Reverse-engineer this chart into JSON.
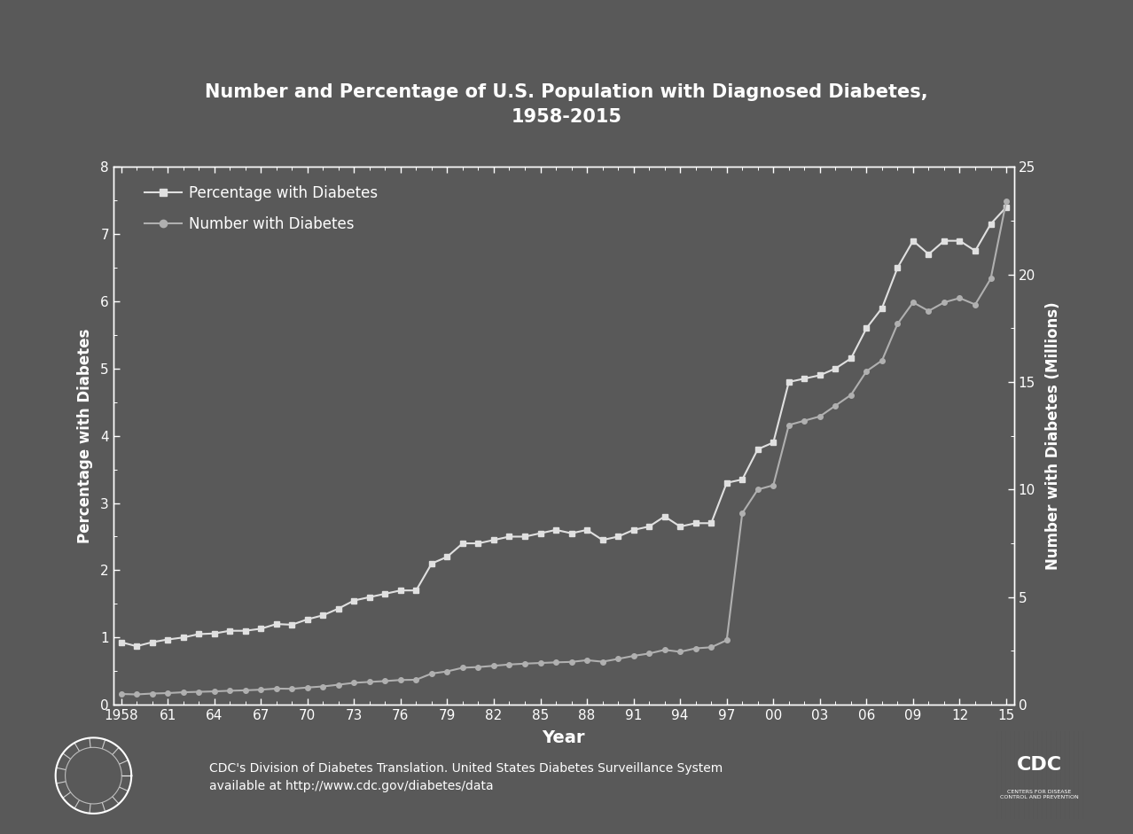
{
  "title": "Number and Percentage of U.S. Population with Diagnosed Diabetes,\n1958-2015",
  "xlabel": "Year",
  "ylabel_left": "Percentage with Diabetes",
  "ylabel_right": "Number with Diabetes (Millions)",
  "bg_color": "#595959",
  "plot_bg_color": "#595959",
  "text_color": "#ffffff",
  "line_color_pct": "#e0e0e0",
  "line_color_num": "#b0b0b0",
  "marker_pct": "s",
  "marker_num": "o",
  "ylim_left": [
    0,
    8
  ],
  "ylim_right": [
    0,
    25
  ],
  "yticks_left": [
    0,
    1,
    2,
    3,
    4,
    5,
    6,
    7,
    8
  ],
  "yticks_right": [
    0,
    5,
    10,
    15,
    20,
    25
  ],
  "footer_text": "CDC's Division of Diabetes Translation. United States Diabetes Surveillance System\navailable at http://www.cdc.gov/diabetes/data",
  "years": [
    1958,
    1959,
    1960,
    1961,
    1962,
    1963,
    1964,
    1965,
    1966,
    1967,
    1968,
    1969,
    1970,
    1971,
    1972,
    1973,
    1974,
    1975,
    1976,
    1977,
    1978,
    1979,
    1980,
    1981,
    1982,
    1983,
    1984,
    1985,
    1986,
    1987,
    1988,
    1989,
    1990,
    1991,
    1992,
    1993,
    1994,
    1995,
    1996,
    1997,
    1998,
    1999,
    2000,
    2001,
    2002,
    2003,
    2004,
    2005,
    2006,
    2007,
    2008,
    2009,
    2010,
    2011,
    2012,
    2013,
    2014,
    2015
  ],
  "pct": [
    0.93,
    0.87,
    0.93,
    0.97,
    1.0,
    1.05,
    1.06,
    1.1,
    1.1,
    1.13,
    1.2,
    1.19,
    1.27,
    1.33,
    1.43,
    1.55,
    1.6,
    1.65,
    1.7,
    1.7,
    2.1,
    2.2,
    2.4,
    2.4,
    2.45,
    2.5,
    2.5,
    2.55,
    2.6,
    2.55,
    2.6,
    2.45,
    2.5,
    2.6,
    2.65,
    2.8,
    2.65,
    2.7,
    2.7,
    3.3,
    3.35,
    3.8,
    3.9,
    4.8,
    4.85,
    4.9,
    5.0,
    5.15,
    5.6,
    5.9,
    6.5,
    6.9,
    6.7,
    6.9,
    6.9,
    6.75,
    7.15,
    7.4
  ],
  "num": [
    0.5,
    0.48,
    0.52,
    0.54,
    0.58,
    0.6,
    0.62,
    0.65,
    0.67,
    0.7,
    0.75,
    0.74,
    0.8,
    0.85,
    0.93,
    1.02,
    1.06,
    1.1,
    1.15,
    1.16,
    1.45,
    1.55,
    1.72,
    1.75,
    1.81,
    1.87,
    1.91,
    1.94,
    1.97,
    1.99,
    2.07,
    2.0,
    2.13,
    2.27,
    2.38,
    2.55,
    2.46,
    2.62,
    2.67,
    3.0,
    8.9,
    10.0,
    10.2,
    13.0,
    13.2,
    13.4,
    13.9,
    14.4,
    15.5,
    16.0,
    17.7,
    18.7,
    18.3,
    18.7,
    18.9,
    18.6,
    19.8,
    23.4
  ],
  "xtick_positions": [
    1958,
    1961,
    1964,
    1967,
    1970,
    1973,
    1976,
    1979,
    1982,
    1985,
    1988,
    1991,
    1994,
    1997,
    2000,
    2003,
    2006,
    2009,
    2012,
    2015
  ],
  "xtick_labels": [
    "1958",
    "61",
    "64",
    "67",
    "70",
    "73",
    "76",
    "79",
    "82",
    "85",
    "88",
    "91",
    "94",
    "97",
    "00",
    "03",
    "06",
    "09",
    "12",
    "15"
  ]
}
